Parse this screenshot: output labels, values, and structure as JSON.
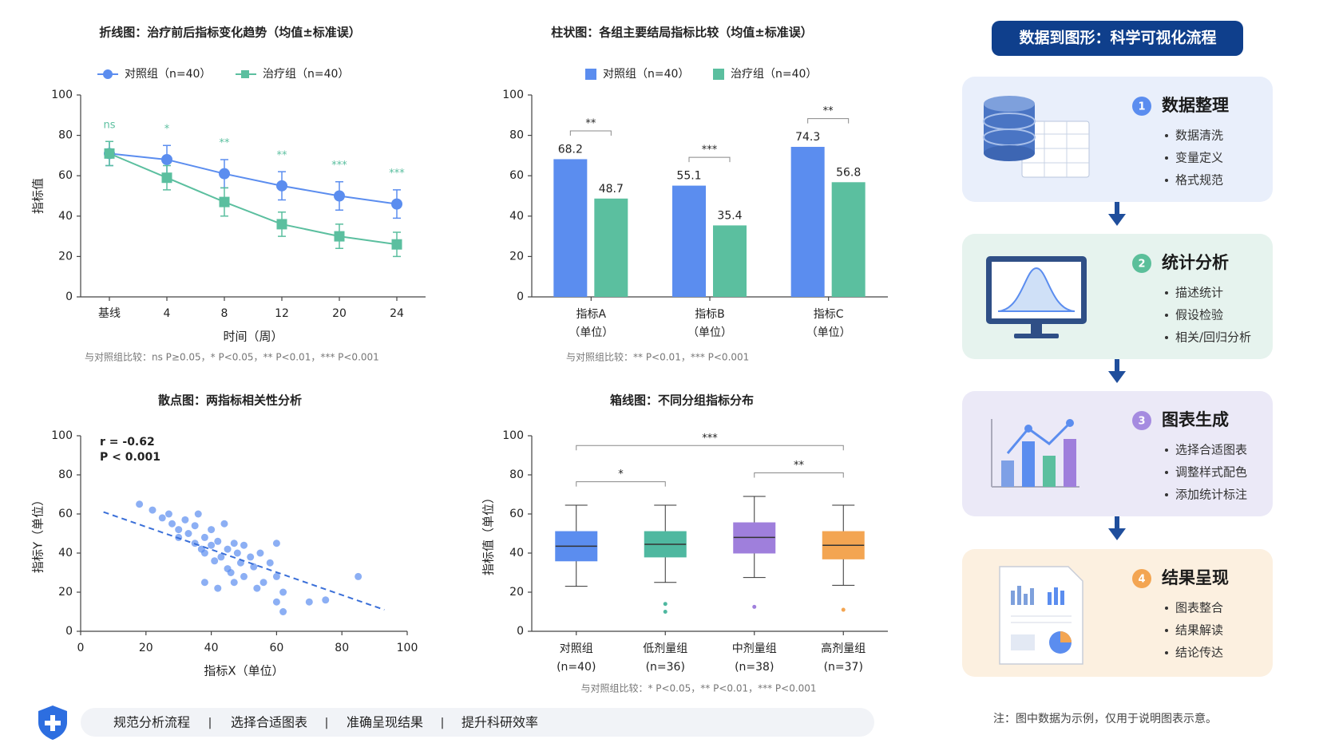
{
  "chart_data": [
    {
      "type": "line",
      "title": "折线图：治疗前后指标变化趋势（均值±标准误）",
      "categories": [
        "基线",
        "4",
        "8",
        "12",
        "20",
        "24"
      ],
      "series": [
        {
          "name": "对照组（n=40）",
          "color": "#5b8def",
          "marker": "circle",
          "values": [
            71,
            68,
            61,
            55,
            50,
            46
          ],
          "errors": [
            6,
            7,
            7,
            7,
            7,
            7
          ]
        },
        {
          "name": "治疗组（n=40）",
          "color": "#5bbf9f",
          "marker": "square",
          "values": [
            71,
            59,
            47,
            36,
            30,
            26
          ],
          "errors": [
            6,
            6,
            7,
            6,
            6,
            6
          ]
        }
      ],
      "significance": [
        "ns",
        "*",
        "**",
        "**",
        "***",
        "***"
      ],
      "significance_color": "#5bbf9f",
      "xlabel": "时间（周）",
      "ylabel": "指标值",
      "ylim": [
        0,
        100
      ],
      "yticks": [
        0,
        20,
        40,
        60,
        80,
        100
      ],
      "footnote": "与对照组比较：ns P≥0.05，* P<0.05，** P<0.01，*** P<0.001"
    },
    {
      "type": "bar",
      "title": "柱状图：各组主要结局指标比较（均值±标准误）",
      "categories": [
        [
          "指标A",
          "（单位）"
        ],
        [
          "指标B",
          "（单位）"
        ],
        [
          "指标C",
          "（单位）"
        ]
      ],
      "series": [
        {
          "name": "对照组（n=40）",
          "color": "#5b8def",
          "values": [
            68.2,
            55.1,
            74.3
          ]
        },
        {
          "name": "治疗组（n=40）",
          "color": "#5bbf9f",
          "values": [
            48.7,
            35.4,
            56.8
          ]
        }
      ],
      "significance": [
        "**",
        "***",
        "**"
      ],
      "ylim": [
        0,
        100
      ],
      "yticks": [
        0,
        20,
        40,
        60,
        80,
        100
      ],
      "footnote": "与对照组比较：** P<0.01，*** P<0.001"
    },
    {
      "type": "scatter",
      "title": "散点图：两指标相关性分析",
      "annotations": [
        "r = -0.62",
        "P < 0.001"
      ],
      "color": "#5b8def",
      "x": [
        18,
        22,
        25,
        27,
        28,
        30,
        30,
        32,
        33,
        35,
        35,
        36,
        37,
        38,
        38,
        40,
        40,
        41,
        42,
        43,
        44,
        45,
        45,
        46,
        47,
        48,
        49,
        50,
        50,
        52,
        53,
        54,
        55,
        56,
        58,
        60,
        60,
        62,
        60,
        62,
        70,
        75,
        85,
        38,
        42,
        47
      ],
      "values": [
        65,
        62,
        58,
        60,
        55,
        52,
        48,
        57,
        50,
        45,
        54,
        60,
        42,
        48,
        40,
        52,
        44,
        36,
        46,
        38,
        55,
        42,
        32,
        30,
        45,
        40,
        35,
        28,
        44,
        38,
        33,
        22,
        40,
        25,
        35,
        15,
        28,
        20,
        45,
        10,
        15,
        16,
        28,
        25,
        22,
        25
      ],
      "trend": {
        "x": [
          7,
          93
        ],
        "y": [
          61,
          11
        ]
      },
      "trend_color": "#3a6fd8",
      "xlabel": "指标X（单位）",
      "ylabel": "指标Y（单位）",
      "xlim": [
        0,
        100
      ],
      "xticks": [
        0,
        20,
        40,
        60,
        80,
        100
      ],
      "ylim": [
        0,
        100
      ],
      "yticks": [
        0,
        20,
        40,
        60,
        80,
        100
      ]
    },
    {
      "type": "box",
      "title": "箱线图：不同分组指标分布",
      "categories": [
        [
          "对照组",
          "(n=40)"
        ],
        [
          "低剂量组",
          "(n=36)"
        ],
        [
          "中剂量组",
          "(n=38)"
        ],
        [
          "高剂量组",
          "(n=37)"
        ]
      ],
      "boxes": [
        {
          "color": "#5b8def",
          "min": 23,
          "q1": 36,
          "median": 43.5,
          "q3": 51,
          "max": 64.5,
          "outliers": []
        },
        {
          "color": "#4fb8a0",
          "min": 25,
          "q1": 38,
          "median": 44.5,
          "q3": 51,
          "max": 64.5,
          "outliers": [
            14,
            10
          ]
        },
        {
          "color": "#9f7fdc",
          "min": 27.5,
          "q1": 40,
          "median": 48,
          "q3": 55.5,
          "max": 69,
          "outliers": [
            12.5
          ]
        },
        {
          "color": "#f3a552",
          "min": 23.5,
          "q1": 37,
          "median": 44,
          "q3": 51,
          "max": 64.5,
          "outliers": [
            11
          ]
        }
      ],
      "comparisons": [
        {
          "groups": [
            0,
            1
          ],
          "label": "*"
        },
        {
          "groups": [
            2,
            3
          ],
          "label": "**"
        },
        {
          "groups": [
            0,
            3
          ],
          "label": "***"
        }
      ],
      "ylabel": "指标值（单位）",
      "ylim": [
        0,
        100
      ],
      "yticks": [
        0,
        20,
        40,
        60,
        80,
        100
      ],
      "footnote": "与对照组比较：* P<0.05，** P<0.01，*** P<0.001"
    }
  ],
  "flow": {
    "title": "数据到图形：科学可视化流程",
    "steps": [
      {
        "number": "1",
        "title": "数据整理",
        "items": [
          "数据清洗",
          "变量定义",
          "格式规范"
        ]
      },
      {
        "number": "2",
        "title": "统计分析",
        "items": [
          "描述统计",
          "假设检验",
          "相关/回归分析"
        ]
      },
      {
        "number": "3",
        "title": "图表生成",
        "items": [
          "选择合适图表",
          "调整样式配色",
          "添加统计标注"
        ]
      },
      {
        "number": "4",
        "title": "结果呈现",
        "items": [
          "图表整合",
          "结果解读",
          "结论传达"
        ]
      }
    ]
  },
  "footer": {
    "items": [
      "规范分析流程",
      "选择合适图表",
      "准确呈现结果",
      "提升科研效率"
    ],
    "note": "注：图中数据为示例，仅用于说明图表示意。"
  }
}
